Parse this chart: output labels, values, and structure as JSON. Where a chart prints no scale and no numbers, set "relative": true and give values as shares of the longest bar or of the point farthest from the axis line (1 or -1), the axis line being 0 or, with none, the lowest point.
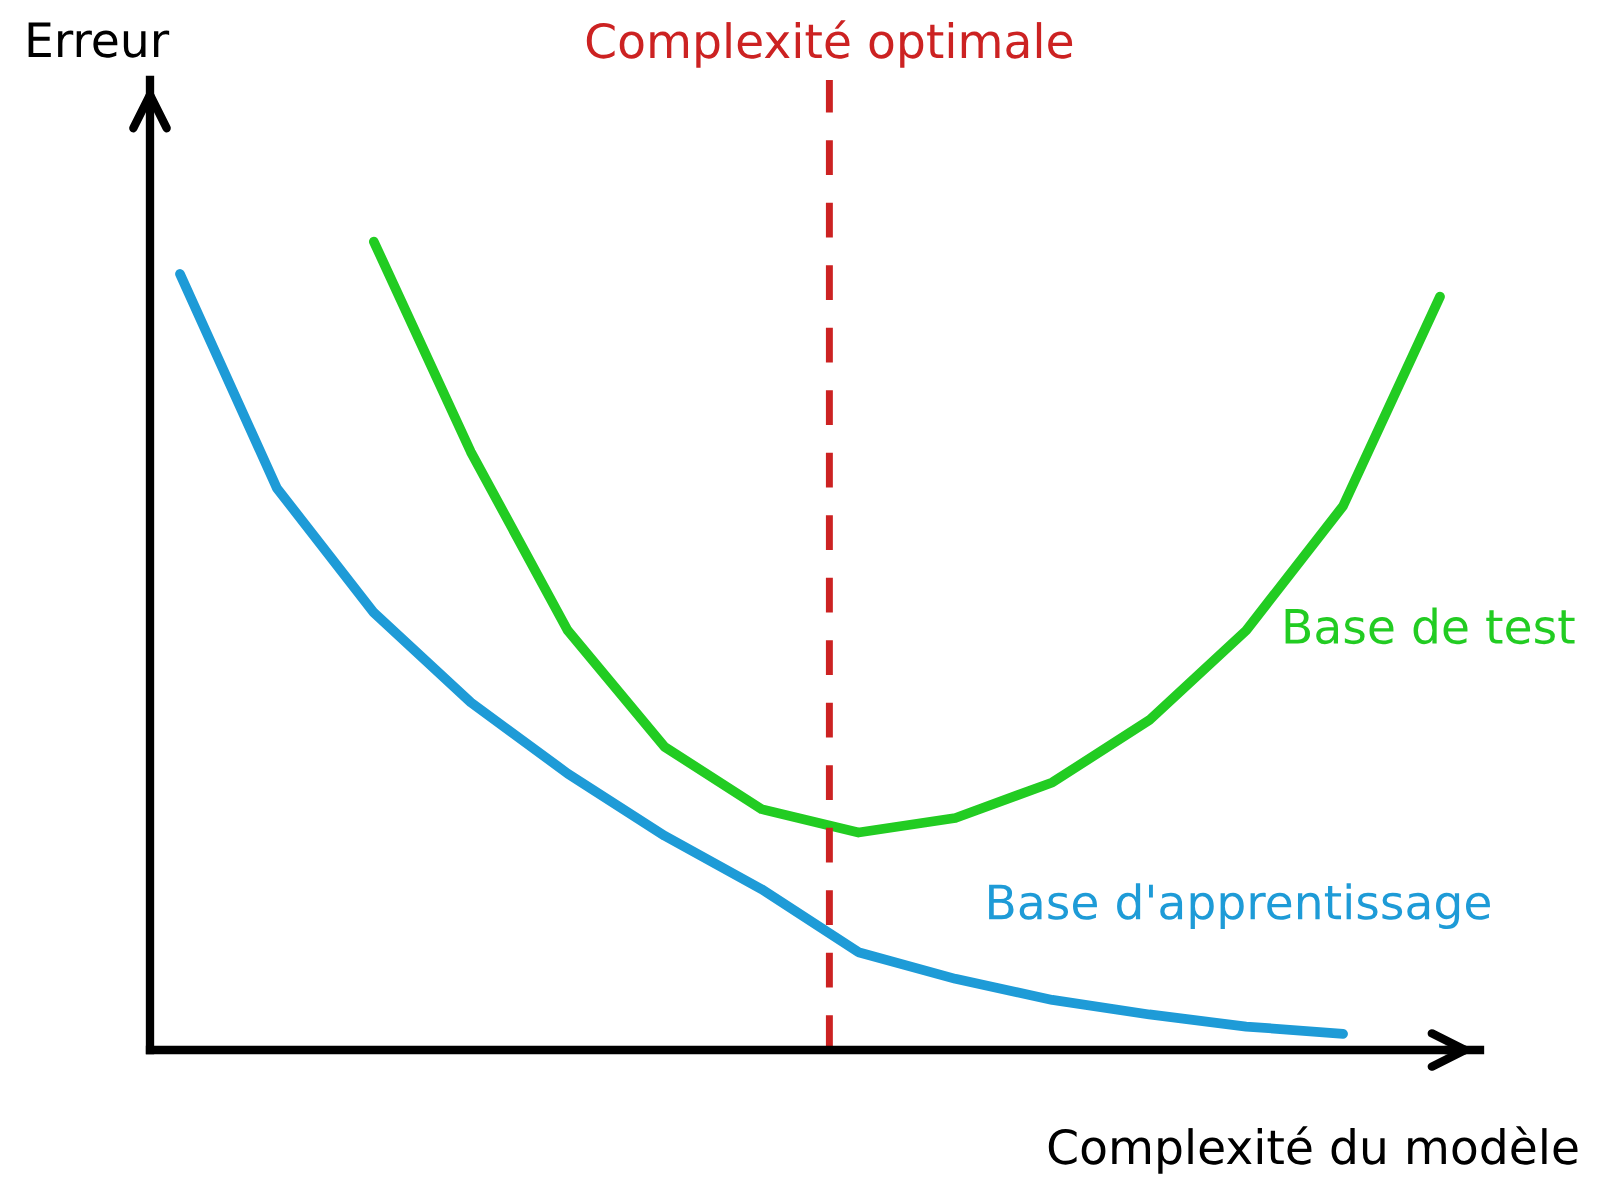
{
  "chart_data": {
    "type": "line",
    "relative": true,
    "xlabel": "Complexité du modèle",
    "ylabel": "Erreur",
    "categories": [
      null,
      null,
      null,
      null,
      null,
      null,
      null,
      null,
      null,
      null,
      null,
      null,
      null,
      null
    ],
    "series": [
      {
        "name": "Base d'apprentissage",
        "color": "#1e9bd7",
        "values": [
          0.96,
          0.695,
          0.541,
          0.43,
          0.342,
          0.265,
          0.199,
          0.121,
          0.088,
          0.062,
          0.044,
          0.029,
          0.02,
          null
        ]
      },
      {
        "name": "Base de test",
        "color": "#22cc22",
        "values": [
          null,
          null,
          1.0,
          0.74,
          0.519,
          0.375,
          0.298,
          0.269,
          0.287,
          0.331,
          0.408,
          0.519,
          0.673,
          0.932
        ]
      }
    ],
    "annotations": [
      "Complexité optimale"
    ],
    "legend": false,
    "marker": "none",
    "line_style": "solid"
  }
}
